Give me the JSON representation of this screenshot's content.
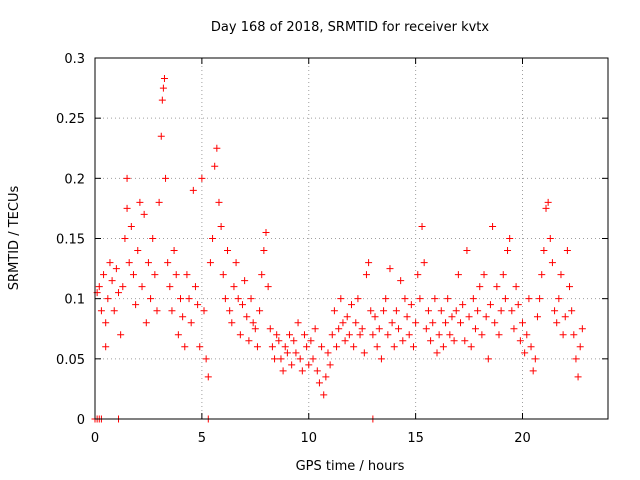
{
  "chart_data": {
    "type": "scatter",
    "title": "Day 168 of 2018, SRMTID for receiver kvtx",
    "xlabel": "GPS time / hours",
    "ylabel": "SRMTID / TECUs",
    "xlim": [
      0,
      24
    ],
    "ylim": [
      0,
      0.3
    ],
    "x_ticks": [
      {
        "value": 0,
        "label": "0"
      },
      {
        "value": 5,
        "label": "5"
      },
      {
        "value": 10,
        "label": "10"
      },
      {
        "value": 15,
        "label": "15"
      },
      {
        "value": 20,
        "label": "20"
      }
    ],
    "y_ticks": [
      {
        "value": 0,
        "label": "0"
      },
      {
        "value": 0.05,
        "label": "0.05"
      },
      {
        "value": 0.1,
        "label": "0.1"
      },
      {
        "value": 0.15,
        "label": "0.15"
      },
      {
        "value": 0.2,
        "label": "0.2"
      },
      {
        "value": 0.25,
        "label": "0.25"
      },
      {
        "value": 0.3,
        "label": "0.3"
      }
    ],
    "grid": true,
    "marker": "+",
    "color": "#ff0000",
    "series": [
      {
        "name": "SRMTID",
        "points": [
          [
            0.0,
            0.0
          ],
          [
            0.1,
            0.0
          ],
          [
            0.2,
            0.0
          ],
          [
            0.3,
            0.0
          ],
          [
            1.1,
            0.0
          ],
          [
            5.3,
            0.0
          ],
          [
            13.0,
            0.0
          ],
          [
            0.1,
            0.105
          ],
          [
            0.2,
            0.11
          ],
          [
            0.3,
            0.09
          ],
          [
            0.4,
            0.12
          ],
          [
            0.5,
            0.06
          ],
          [
            0.5,
            0.08
          ],
          [
            0.6,
            0.1
          ],
          [
            0.7,
            0.13
          ],
          [
            0.8,
            0.115
          ],
          [
            0.9,
            0.09
          ],
          [
            1.0,
            0.125
          ],
          [
            1.1,
            0.105
          ],
          [
            1.2,
            0.07
          ],
          [
            1.3,
            0.11
          ],
          [
            1.4,
            0.15
          ],
          [
            1.5,
            0.2
          ],
          [
            1.5,
            0.175
          ],
          [
            1.6,
            0.13
          ],
          [
            1.7,
            0.16
          ],
          [
            1.8,
            0.12
          ],
          [
            1.9,
            0.095
          ],
          [
            2.0,
            0.14
          ],
          [
            2.1,
            0.18
          ],
          [
            2.2,
            0.11
          ],
          [
            2.3,
            0.17
          ],
          [
            2.4,
            0.08
          ],
          [
            2.5,
            0.13
          ],
          [
            2.6,
            0.1
          ],
          [
            2.7,
            0.15
          ],
          [
            2.8,
            0.12
          ],
          [
            2.9,
            0.09
          ],
          [
            3.0,
            0.18
          ],
          [
            3.1,
            0.235
          ],
          [
            3.15,
            0.265
          ],
          [
            3.2,
            0.275
          ],
          [
            3.25,
            0.283
          ],
          [
            3.3,
            0.2
          ],
          [
            3.4,
            0.13
          ],
          [
            3.5,
            0.11
          ],
          [
            3.6,
            0.09
          ],
          [
            3.7,
            0.14
          ],
          [
            3.8,
            0.12
          ],
          [
            3.9,
            0.07
          ],
          [
            4.0,
            0.1
          ],
          [
            4.1,
            0.085
          ],
          [
            4.2,
            0.06
          ],
          [
            4.3,
            0.12
          ],
          [
            4.4,
            0.1
          ],
          [
            4.5,
            0.08
          ],
          [
            4.6,
            0.19
          ],
          [
            4.7,
            0.11
          ],
          [
            4.8,
            0.095
          ],
          [
            4.9,
            0.06
          ],
          [
            5.0,
            0.2
          ],
          [
            5.1,
            0.09
          ],
          [
            5.2,
            0.05
          ],
          [
            5.3,
            0.035
          ],
          [
            5.4,
            0.13
          ],
          [
            5.5,
            0.15
          ],
          [
            5.6,
            0.21
          ],
          [
            5.7,
            0.225
          ],
          [
            5.8,
            0.18
          ],
          [
            5.9,
            0.16
          ],
          [
            6.0,
            0.12
          ],
          [
            6.1,
            0.1
          ],
          [
            6.2,
            0.14
          ],
          [
            6.3,
            0.09
          ],
          [
            6.4,
            0.08
          ],
          [
            6.5,
            0.11
          ],
          [
            6.6,
            0.13
          ],
          [
            6.7,
            0.1
          ],
          [
            6.8,
            0.07
          ],
          [
            6.9,
            0.095
          ],
          [
            7.0,
            0.115
          ],
          [
            7.1,
            0.085
          ],
          [
            7.2,
            0.065
          ],
          [
            7.3,
            0.1
          ],
          [
            7.4,
            0.08
          ],
          [
            7.5,
            0.075
          ],
          [
            7.6,
            0.06
          ],
          [
            7.7,
            0.09
          ],
          [
            7.8,
            0.12
          ],
          [
            7.9,
            0.14
          ],
          [
            8.0,
            0.155
          ],
          [
            8.1,
            0.11
          ],
          [
            8.2,
            0.075
          ],
          [
            8.3,
            0.06
          ],
          [
            8.4,
            0.05
          ],
          [
            8.5,
            0.07
          ],
          [
            8.6,
            0.065
          ],
          [
            8.7,
            0.05
          ],
          [
            8.8,
            0.04
          ],
          [
            8.9,
            0.06
          ],
          [
            9.0,
            0.055
          ],
          [
            9.1,
            0.07
          ],
          [
            9.2,
            0.045
          ],
          [
            9.3,
            0.065
          ],
          [
            9.4,
            0.055
          ],
          [
            9.5,
            0.08
          ],
          [
            9.6,
            0.05
          ],
          [
            9.7,
            0.04
          ],
          [
            9.8,
            0.07
          ],
          [
            9.9,
            0.06
          ],
          [
            10.0,
            0.045
          ],
          [
            10.1,
            0.065
          ],
          [
            10.2,
            0.05
          ],
          [
            10.3,
            0.075
          ],
          [
            10.4,
            0.04
          ],
          [
            10.5,
            0.03
          ],
          [
            10.6,
            0.06
          ],
          [
            10.7,
            0.02
          ],
          [
            10.8,
            0.035
          ],
          [
            10.9,
            0.055
          ],
          [
            11.0,
            0.045
          ],
          [
            11.1,
            0.07
          ],
          [
            11.2,
            0.09
          ],
          [
            11.3,
            0.06
          ],
          [
            11.4,
            0.075
          ],
          [
            11.5,
            0.1
          ],
          [
            11.6,
            0.08
          ],
          [
            11.7,
            0.065
          ],
          [
            11.8,
            0.085
          ],
          [
            11.9,
            0.07
          ],
          [
            12.0,
            0.095
          ],
          [
            12.1,
            0.06
          ],
          [
            12.2,
            0.08
          ],
          [
            12.3,
            0.1
          ],
          [
            12.4,
            0.07
          ],
          [
            12.5,
            0.075
          ],
          [
            12.6,
            0.055
          ],
          [
            12.7,
            0.12
          ],
          [
            12.8,
            0.13
          ],
          [
            12.9,
            0.09
          ],
          [
            13.0,
            0.07
          ],
          [
            13.1,
            0.085
          ],
          [
            13.2,
            0.06
          ],
          [
            13.3,
            0.075
          ],
          [
            13.4,
            0.05
          ],
          [
            13.5,
            0.09
          ],
          [
            13.6,
            0.1
          ],
          [
            13.7,
            0.07
          ],
          [
            13.8,
            0.125
          ],
          [
            13.9,
            0.08
          ],
          [
            14.0,
            0.06
          ],
          [
            14.1,
            0.09
          ],
          [
            14.2,
            0.075
          ],
          [
            14.3,
            0.115
          ],
          [
            14.4,
            0.065
          ],
          [
            14.5,
            0.1
          ],
          [
            14.6,
            0.085
          ],
          [
            14.7,
            0.07
          ],
          [
            14.8,
            0.095
          ],
          [
            14.9,
            0.06
          ],
          [
            15.0,
            0.08
          ],
          [
            15.1,
            0.12
          ],
          [
            15.2,
            0.1
          ],
          [
            15.3,
            0.16
          ],
          [
            15.4,
            0.13
          ],
          [
            15.5,
            0.075
          ],
          [
            15.6,
            0.09
          ],
          [
            15.7,
            0.065
          ],
          [
            15.8,
            0.08
          ],
          [
            15.9,
            0.1
          ],
          [
            16.0,
            0.055
          ],
          [
            16.1,
            0.07
          ],
          [
            16.2,
            0.09
          ],
          [
            16.3,
            0.06
          ],
          [
            16.4,
            0.08
          ],
          [
            16.5,
            0.1
          ],
          [
            16.6,
            0.07
          ],
          [
            16.7,
            0.085
          ],
          [
            16.8,
            0.065
          ],
          [
            16.9,
            0.09
          ],
          [
            17.0,
            0.12
          ],
          [
            17.1,
            0.08
          ],
          [
            17.2,
            0.095
          ],
          [
            17.3,
            0.065
          ],
          [
            17.4,
            0.14
          ],
          [
            17.5,
            0.085
          ],
          [
            17.6,
            0.06
          ],
          [
            17.7,
            0.1
          ],
          [
            17.8,
            0.075
          ],
          [
            17.9,
            0.09
          ],
          [
            18.0,
            0.11
          ],
          [
            18.1,
            0.07
          ],
          [
            18.2,
            0.12
          ],
          [
            18.3,
            0.085
          ],
          [
            18.4,
            0.05
          ],
          [
            18.5,
            0.095
          ],
          [
            18.6,
            0.16
          ],
          [
            18.7,
            0.08
          ],
          [
            18.8,
            0.11
          ],
          [
            18.9,
            0.07
          ],
          [
            19.0,
            0.09
          ],
          [
            19.1,
            0.12
          ],
          [
            19.2,
            0.1
          ],
          [
            19.3,
            0.14
          ],
          [
            19.4,
            0.15
          ],
          [
            19.5,
            0.09
          ],
          [
            19.6,
            0.075
          ],
          [
            19.7,
            0.11
          ],
          [
            19.8,
            0.095
          ],
          [
            19.9,
            0.065
          ],
          [
            20.0,
            0.08
          ],
          [
            20.1,
            0.055
          ],
          [
            20.2,
            0.07
          ],
          [
            20.3,
            0.1
          ],
          [
            20.4,
            0.06
          ],
          [
            20.5,
            0.04
          ],
          [
            20.6,
            0.05
          ],
          [
            20.7,
            0.085
          ],
          [
            20.8,
            0.1
          ],
          [
            20.9,
            0.12
          ],
          [
            21.0,
            0.14
          ],
          [
            21.1,
            0.175
          ],
          [
            21.2,
            0.18
          ],
          [
            21.3,
            0.15
          ],
          [
            21.4,
            0.13
          ],
          [
            21.5,
            0.09
          ],
          [
            21.6,
            0.08
          ],
          [
            21.7,
            0.1
          ],
          [
            21.8,
            0.12
          ],
          [
            21.9,
            0.07
          ],
          [
            22.0,
            0.085
          ],
          [
            22.1,
            0.14
          ],
          [
            22.2,
            0.11
          ],
          [
            22.3,
            0.09
          ],
          [
            22.4,
            0.07
          ],
          [
            22.5,
            0.05
          ],
          [
            22.6,
            0.035
          ],
          [
            22.7,
            0.06
          ],
          [
            22.8,
            0.075
          ]
        ]
      }
    ]
  }
}
